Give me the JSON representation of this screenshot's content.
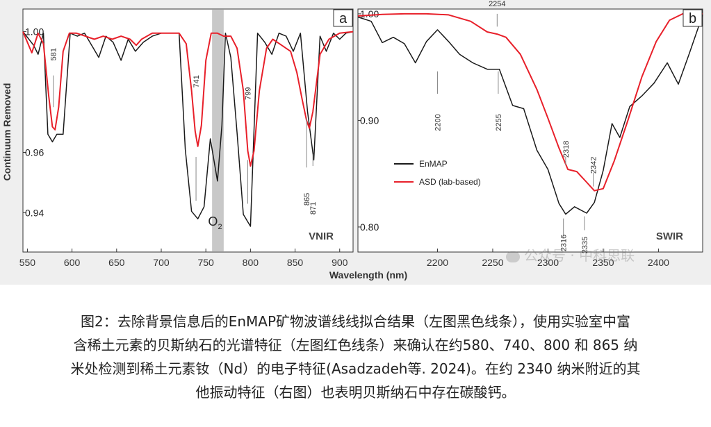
{
  "figure": {
    "xlabel": "Wavelength (nm)",
    "ylabel": "Continuum Removed",
    "watermark": "公众号 · 中科思联"
  },
  "caption": {
    "line1": "图2：去除背景信息后的EnMAP矿物波谱线线拟合结果（左图黑色线条），使用实验室中富",
    "line2": "含稀土元素的贝斯纳石的光谱特征（左图红色线条）来确认在约580、740、800 和 865 纳",
    "line3": "米处检测到稀土元素钕（Nd）的电子特征(Asadzadeh等. 2024)。在约 2340 纳米附近的其",
    "line4": "他振动特征（右图）也表明贝斯纳石中存在碳酸钙。"
  },
  "colors": {
    "enmap": "#1a1a1a",
    "asd": "#e8202a",
    "o2_band": "#c8c8c8",
    "plot_bg": "#ffffff",
    "figure_bg": "#efefef"
  },
  "chart_data": [
    {
      "type": "line",
      "panel_label": "a",
      "region_label": "VNIR",
      "band_label": "O",
      "band_label_sub": "2",
      "band_range": [
        757,
        770
      ],
      "xlim": [
        545,
        915
      ],
      "ylim": [
        0.927,
        1.0075
      ],
      "x_ticks": [
        550,
        600,
        650,
        700,
        750,
        800,
        850,
        900
      ],
      "y_ticks": [
        {
          "value": 1.0,
          "label": "1.00"
        },
        {
          "value": 0.96,
          "label": "0.96"
        },
        {
          "value": 0.94,
          "label": "0.94"
        }
      ],
      "series": [
        {
          "name": "EnMAP",
          "color": "#1a1a1a",
          "x": [
            545,
            557,
            562,
            568,
            573,
            578,
            583,
            590,
            598,
            606,
            614,
            622,
            630,
            638,
            646,
            655,
            663,
            671,
            680,
            690,
            700,
            710,
            720,
            727,
            734,
            741,
            748,
            755,
            763,
            768,
            772,
            778,
            785,
            792,
            800,
            808,
            816,
            824,
            832,
            840,
            848,
            856,
            864,
            871,
            878,
            885,
            893,
            900,
            907,
            915
          ],
          "y": [
            1.0,
            0.9955,
            0.9925,
            0.9995,
            0.966,
            0.9635,
            0.966,
            0.966,
            0.9995,
            0.9985,
            0.9995,
            0.9955,
            0.9915,
            0.9985,
            0.9965,
            0.9905,
            0.9975,
            0.9935,
            0.9965,
            0.9985,
            0.9995,
            0.9995,
            0.9995,
            0.961,
            0.9405,
            0.938,
            0.942,
            0.9645,
            0.9505,
            0.969,
            0.9995,
            0.9915,
            0.9665,
            0.9395,
            0.9355,
            0.9995,
            0.9965,
            0.9925,
            0.9995,
            0.9985,
            0.9935,
            0.9995,
            0.9735,
            0.9575,
            0.9985,
            0.9935,
            0.9995,
            0.9975,
            0.9995,
            1.0
          ]
        },
        {
          "name": "ASD (lab-based)",
          "color": "#e8202a",
          "x": [
            545,
            555,
            562,
            568,
            574,
            578,
            581,
            585,
            590,
            597,
            605,
            615,
            625,
            635,
            645,
            655,
            665,
            672,
            678,
            690,
            700,
            710,
            720,
            728,
            734,
            738,
            741,
            745,
            750,
            756,
            763,
            770,
            778,
            785,
            792,
            797,
            800,
            804,
            810,
            818,
            825,
            835,
            845,
            852,
            858,
            863,
            866,
            870,
            878,
            888,
            900,
            915
          ],
          "y": [
            1.0,
            0.993,
            0.9995,
            0.996,
            0.9785,
            0.9685,
            0.9675,
            0.975,
            0.9935,
            0.9995,
            0.9995,
            0.9985,
            0.9975,
            0.9985,
            0.9975,
            0.9985,
            0.9975,
            0.9955,
            0.9975,
            0.9995,
            0.9995,
            0.9995,
            0.9995,
            0.996,
            0.9805,
            0.967,
            0.962,
            0.969,
            0.9905,
            0.9995,
            0.9995,
            0.9985,
            0.9985,
            0.9945,
            0.9805,
            0.9605,
            0.9555,
            0.9605,
            0.9805,
            0.9945,
            0.9975,
            0.9955,
            0.9935,
            0.9865,
            0.9775,
            0.9705,
            0.968,
            0.9735,
            0.9925,
            0.9975,
            0.9995,
            1.0
          ]
        }
      ],
      "annotations": [
        {
          "text": "581",
          "x": 579,
          "y": 0.9925,
          "line_to": [
            0.975,
            0.9855
          ],
          "rotate": -90
        },
        {
          "text": "741",
          "x": 739,
          "y": 0.9835,
          "line_to": [
            0.944,
            0.9585
          ],
          "rotate": -90
        },
        {
          "text": "799",
          "x": 797,
          "y": 0.9795,
          "line_to": [
            0.943,
            0.9575
          ],
          "rotate": -90
        },
        {
          "text": "865",
          "x": 863,
          "y": 0.9445,
          "line_to": [
            0.955,
            0.9715
          ],
          "rotate": -90
        },
        {
          "text": "871",
          "x": 870,
          "y": 0.9415,
          "line_to": [
            0.9555,
            0.9595
          ],
          "rotate": -90
        }
      ]
    },
    {
      "type": "line",
      "panel_label": "b",
      "region_label": "SWIR",
      "xlim": [
        2128,
        2440
      ],
      "ylim": [
        0.7765,
        1.0045
      ],
      "x_ticks": [
        2200,
        2250,
        2300,
        2350,
        2400
      ],
      "y_ticks": [
        {
          "value": 1.0,
          "label": "1.00"
        },
        {
          "value": 0.9,
          "label": "0.90"
        },
        {
          "value": 0.8,
          "label": "0.80"
        }
      ],
      "legend_position": "center-left",
      "series": [
        {
          "name": "EnMAP",
          "color": "#1a1a1a",
          "x": [
            2128,
            2140,
            2150,
            2160,
            2170,
            2180,
            2190,
            2200,
            2210,
            2220,
            2232,
            2245,
            2256,
            2268,
            2278,
            2290,
            2300,
            2310,
            2316,
            2324,
            2335,
            2342,
            2350,
            2358,
            2365,
            2374,
            2385,
            2396,
            2408,
            2418,
            2428,
            2440
          ],
          "y": [
            0.997,
            0.993,
            0.973,
            0.978,
            0.972,
            0.954,
            0.974,
            0.985,
            0.974,
            0.962,
            0.954,
            0.948,
            0.948,
            0.914,
            0.911,
            0.872,
            0.854,
            0.822,
            0.812,
            0.819,
            0.813,
            0.823,
            0.853,
            0.897,
            0.884,
            0.913,
            0.923,
            0.935,
            0.954,
            0.934,
            0.963,
            0.999
          ]
        },
        {
          "name": "ASD (lab-based)",
          "color": "#e8202a",
          "x": [
            2128,
            2150,
            2170,
            2190,
            2210,
            2230,
            2245,
            2254,
            2262,
            2275,
            2290,
            2300,
            2310,
            2318,
            2326,
            2335,
            2342,
            2350,
            2360,
            2372,
            2385,
            2398,
            2410,
            2422,
            2432,
            2440
          ],
          "y": [
            0.998,
            0.9995,
            1.0,
            1.0,
            0.999,
            0.993,
            0.983,
            0.981,
            0.978,
            0.962,
            0.929,
            0.902,
            0.874,
            0.854,
            0.852,
            0.842,
            0.834,
            0.836,
            0.862,
            0.899,
            0.941,
            0.974,
            0.994,
            1.0,
            1.0,
            1.0
          ]
        }
      ],
      "annotations": [
        {
          "text": "2254",
          "x": 2254,
          "y": 1.007,
          "line_to": [
            0.988,
            1.0
          ],
          "rotate": 0
        },
        {
          "text": "2200",
          "x": 2200,
          "y": 0.898,
          "line_to": [
            0.925,
            0.946
          ],
          "rotate": -90
        },
        {
          "text": "2255",
          "x": 2255,
          "y": 0.898,
          "line_to": [
            0.925,
            0.946
          ],
          "rotate": -90
        },
        {
          "text": "2318",
          "x": 2316,
          "y": 0.873,
          "line_to": [
            0.858,
            0.866
          ],
          "rotate": -90
        },
        {
          "text": "2342",
          "x": 2341,
          "y": 0.858,
          "line_to": [
            0.838,
            0.851
          ],
          "rotate": -90
        },
        {
          "text": "2316",
          "x": 2314,
          "y": 0.785,
          "line_to": [
            0.792,
            0.808
          ],
          "rotate": -90
        },
        {
          "text": "2335",
          "x": 2333,
          "y": 0.783,
          "line_to": [
            0.797,
            0.81
          ],
          "rotate": -90
        }
      ]
    }
  ]
}
